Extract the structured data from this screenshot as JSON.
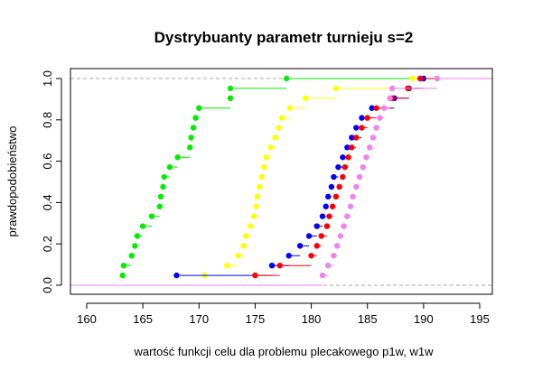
{
  "chart_data": {
    "type": "line",
    "title": "Dystrybuanty parametr turnieju s=2",
    "xlabel": "wartość funkcji celu dla problemu plecakowego p1w, w1w",
    "ylabel": "prawdopodobieństwo",
    "xlim": [
      160,
      195
    ],
    "ylim": [
      0,
      1
    ],
    "x_ticks": [
      160,
      165,
      170,
      175,
      180,
      185,
      190,
      195
    ],
    "y_ticks": [
      0.0,
      0.2,
      0.4,
      0.6,
      0.8,
      1.0
    ],
    "x_tick_labels": [
      "160",
      "165",
      "170",
      "175",
      "180",
      "185",
      "190",
      "195"
    ],
    "y_tick_labels": [
      "0.0",
      "0.2",
      "0.4",
      "0.6",
      "0.8",
      "1.0"
    ],
    "reference_lines": [
      0,
      1
    ],
    "grid": false,
    "series": [
      {
        "color": "#00ee00",
        "x": [
          163.2,
          163.3,
          164.0,
          164.3,
          164.5,
          165.0,
          165.8,
          166.5,
          166.6,
          166.8,
          166.9,
          167.4,
          168.1,
          169.2,
          169.3,
          169.5,
          169.7,
          170.0,
          172.8,
          172.8,
          177.8
        ]
      },
      {
        "color": "#ffff00",
        "x": [
          170.5,
          172.5,
          173.5,
          174.0,
          174.2,
          174.6,
          174.9,
          175.1,
          175.2,
          175.4,
          175.6,
          175.8,
          176.0,
          176.4,
          176.8,
          177.1,
          177.4,
          178.1,
          179.5,
          182.2,
          189.0
        ]
      },
      {
        "color": "#0000ff",
        "x": [
          168.0,
          176.5,
          178.0,
          179.0,
          179.8,
          180.5,
          181.0,
          181.3,
          181.5,
          181.8,
          182.0,
          182.4,
          182.8,
          183.2,
          183.6,
          184.0,
          184.5,
          185.4,
          187.4,
          188.7,
          190.0
        ]
      },
      {
        "color": "#ff0000",
        "x": [
          175.0,
          177.2,
          180.0,
          180.5,
          180.9,
          181.4,
          181.6,
          181.9,
          182.2,
          182.5,
          182.8,
          183.0,
          183.3,
          183.6,
          184.0,
          184.5,
          185.0,
          185.8,
          187.2,
          188.6,
          189.7
        ]
      },
      {
        "color": "#ee82ee",
        "x": [
          181.0,
          181.5,
          182.0,
          182.3,
          182.6,
          182.9,
          183.2,
          183.5,
          183.7,
          184.0,
          184.3,
          184.6,
          184.9,
          185.2,
          185.5,
          185.8,
          186.1,
          186.5,
          187.0,
          187.2,
          191.2
        ]
      }
    ]
  }
}
